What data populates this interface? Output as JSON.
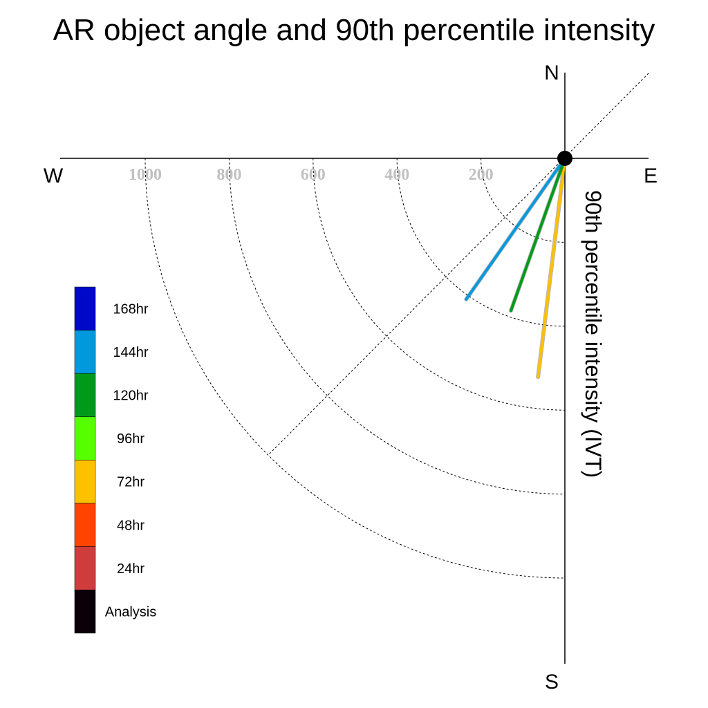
{
  "chart_data": {
    "type": "polar-line",
    "title": "AR object angle and 90th percentile intensity",
    "ylabel": "90th percentile intensity (IVT)",
    "directions": {
      "north": "N",
      "south": "S",
      "east": "E",
      "west": "W"
    },
    "radial_ticks": [
      200,
      400,
      600,
      800,
      1000
    ],
    "radial_tick_labels": [
      "200",
      "400",
      "600",
      "800",
      "1000"
    ],
    "radial_range": [
      0,
      1000
    ],
    "quadrant": "south-west",
    "series": [
      {
        "name": "72hr",
        "color": "#ffc000",
        "angle_deg": 187,
        "intensity": 525
      },
      {
        "name": "120hr",
        "color": "#009a1a",
        "angle_deg": 199.5,
        "intensity": 385
      },
      {
        "name": "144hr",
        "color": "#0099dd",
        "angle_deg": 215,
        "intensity": 410
      }
    ],
    "legend": [
      {
        "label": "168hr",
        "color": "#0008c8"
      },
      {
        "label": "144hr",
        "color": "#0099dd"
      },
      {
        "label": "120hr",
        "color": "#009a1a"
      },
      {
        "label": "96hr",
        "color": "#55ff00"
      },
      {
        "label": "72hr",
        "color": "#ffc000"
      },
      {
        "label": "48hr",
        "color": "#ff4400"
      },
      {
        "label": "24hr",
        "color": "#d03c3c"
      },
      {
        "label": "Analysis",
        "color": "#0c0008"
      }
    ]
  }
}
